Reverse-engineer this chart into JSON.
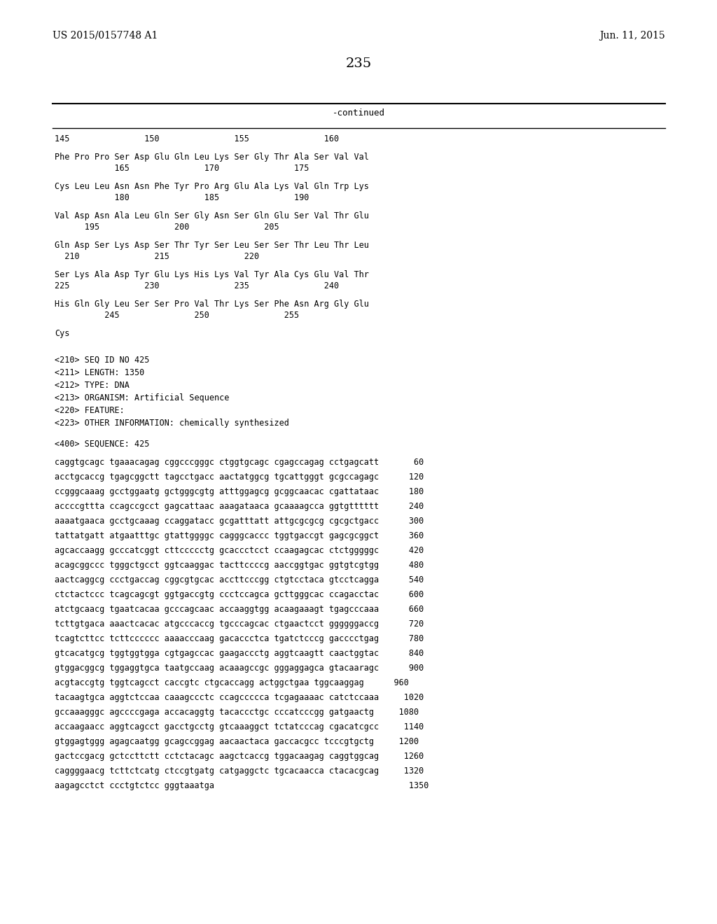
{
  "header_left": "US 2015/0157748 A1",
  "header_right": "Jun. 11, 2015",
  "page_number": "235",
  "continued_label": "-continued",
  "background_color": "#ffffff",
  "text_color": "#000000",
  "aa_lines": [
    [
      "145               150               155               160"
    ],
    [
      "Phe Pro Pro Ser Asp Glu Gln Leu Lys Ser Gly Thr Ala Ser Val Val",
      "            165               170               175"
    ],
    [
      "Cys Leu Leu Asn Asn Phe Tyr Pro Arg Glu Ala Lys Val Gln Trp Lys",
      "            180               185               190"
    ],
    [
      "Val Asp Asn Ala Leu Gln Ser Gly Asn Ser Gln Glu Ser Val Thr Glu",
      "      195               200               205"
    ],
    [
      "Gln Asp Ser Lys Asp Ser Thr Tyr Ser Leu Ser Ser Thr Leu Thr Leu",
      "  210               215               220"
    ],
    [
      "Ser Lys Ala Asp Tyr Glu Lys His Lys Val Tyr Ala Cys Glu Val Thr",
      "225               230               235               240"
    ],
    [
      "His Gln Gly Leu Ser Ser Pro Val Thr Lys Ser Phe Asn Arg Gly Glu",
      "          245               250               255"
    ]
  ],
  "cys_line": "Cys",
  "meta_lines": [
    "<210> SEQ ID NO 425",
    "<211> LENGTH: 1350",
    "<212> TYPE: DNA",
    "<213> ORGANISM: Artificial Sequence",
    "<220> FEATURE:",
    "<223> OTHER INFORMATION: chemically synthesized"
  ],
  "seq_header": "<400> SEQUENCE: 425",
  "dna_lines": [
    "caggtgcagc tgaaacagag cggcccgggc ctggtgcagc cgagccagag cctgagcatt       60",
    "acctgcaccg tgagcggctt tagcctgacc aactatggcg tgcattgggt gcgccagagc      120",
    "ccgggcaaag gcctggaatg gctgggcgtg atttggagcg gcggcaacac cgattataac      180",
    "accccgttta ccagccgcct gagcattaac aaagataaca gcaaaagcca ggtgtttttt      240",
    "aaaatgaaca gcctgcaaag ccaggatacc gcgatttatt attgcgcgcg cgcgctgacc      300",
    "tattatgatt atgaatttgc gtattggggc cagggcaccc tggtgaccgt gagcgcggct      360",
    "agcaccaagg gcccatcggt cttccccctg gcaccctcct ccaagagcac ctctgggggc      420",
    "acagcggccc tgggctgcct ggtcaaggac tacttccccg aaccggtgac ggtgtcgtgg      480",
    "aactcaggcg ccctgaccag cggcgtgcac accttcccgg ctgtcctaca gtcctcagga      540",
    "ctctactccc tcagcagcgt ggtgaccgtg ccctccagca gcttgggcac ccagacctac      600",
    "atctgcaacg tgaatcacaa gcccagcaac accaaggtgg acaagaaagt tgagcccaaa      660",
    "tcttgtgaca aaactcacac atgcccaccg tgcccagcac ctgaactcct ggggggaccg      720",
    "tcagtcttcc tcttcccccc aaaacccaag gacaccctca tgatctcccg gacccctgag      780",
    "gtcacatgcg tggtggtgga cgtgagccac gaagaccctg aggtcaagtt caactggtac      840",
    "gtggacggcg tggaggtgca taatgccaag acaaagccgc gggaggagca gtacaaragc      900",
    "acgtaccgtg tggtcagcct caccgtc ctgcaccagg actggctgaa tggcaaggag      960",
    "tacaagtgca aggtctccaa caaagccctc ccagccccca tcgagaaaac catctccaaa     1020",
    "gccaaagggc agccccgaga accacaggtg tacaccctgc cccatcccgg gatgaactg     1080",
    "accaagaacc aggtcagcct gacctgcctg gtcaaaggct tctatcccag cgacatcgcc     1140",
    "gtggagtggg agagcaatgg gcagccggag aacaactaca gaccacgcc tcccgtgctg     1200",
    "gactccgacg gctccttctt cctctacagc aagctcaccg tggacaagag caggtggcag     1260",
    "caggggaacg tcttctcatg ctccgtgatg catgaggctc tgcacaacca ctacacgcag     1320",
    "aagagcctct ccctgtctcc gggtaaatga                                       1350"
  ]
}
